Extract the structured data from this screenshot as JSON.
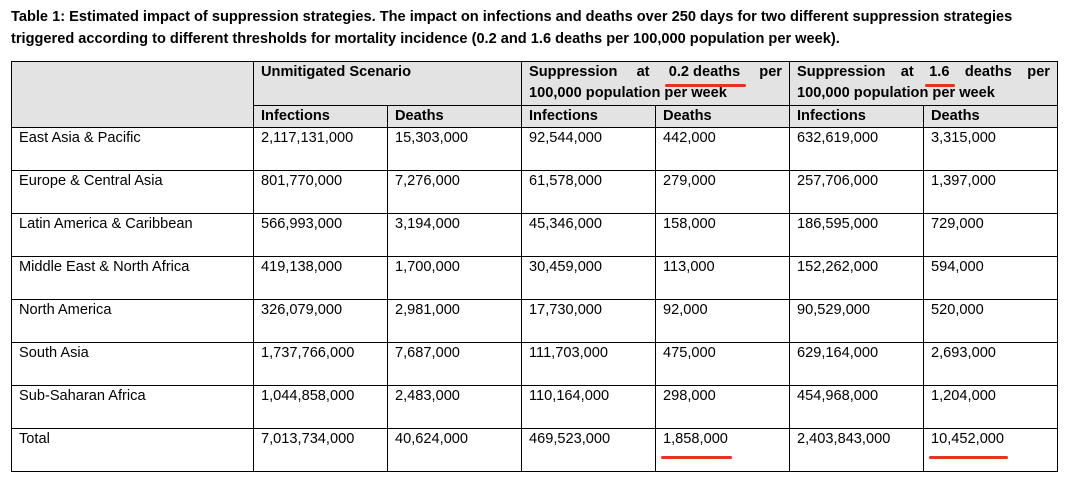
{
  "caption": "Table 1: Estimated impact of suppression strategies. The impact on infections and deaths over 250 days for two different suppression strategies triggered according to different thresholds for mortality incidence (0.2 and 1.6 deaths per 100,000 population per week).",
  "table": {
    "groups": {
      "unmitigated": "Unmitigated Scenario",
      "suppression_low": {
        "line1": [
          "Suppression",
          "at",
          "0.2 deaths",
          "per"
        ],
        "line2": "100,000 population per week"
      },
      "suppression_high": {
        "line1": [
          "Suppression",
          "at",
          "1.6",
          "deaths",
          "per"
        ],
        "line2": "100,000 population per week"
      }
    },
    "subheaders": [
      "Infections",
      "Deaths",
      "Infections",
      "Deaths",
      "Infections",
      "Deaths"
    ],
    "rows": [
      {
        "region": "East Asia & Pacific",
        "values": [
          "2,117,131,000",
          "15,303,000",
          "92,544,000",
          "442,000",
          "632,619,000",
          "3,315,000"
        ]
      },
      {
        "region": "Europe & Central Asia",
        "values": [
          "801,770,000",
          "7,276,000",
          "61,578,000",
          "279,000",
          "257,706,000",
          "1,397,000"
        ]
      },
      {
        "region": "Latin America & Caribbean",
        "values": [
          "566,993,000",
          "3,194,000",
          "45,346,000",
          "158,000",
          "186,595,000",
          "729,000"
        ]
      },
      {
        "region": "Middle East & North Africa",
        "values": [
          "419,138,000",
          "1,700,000",
          "30,459,000",
          "113,000",
          "152,262,000",
          "594,000"
        ]
      },
      {
        "region": "North America",
        "values": [
          "326,079,000",
          "2,981,000",
          "17,730,000",
          "92,000",
          "90,529,000",
          "520,000"
        ]
      },
      {
        "region": "South Asia",
        "values": [
          "1,737,766,000",
          "7,687,000",
          "111,703,000",
          "475,000",
          "629,164,000",
          "2,693,000"
        ]
      },
      {
        "region": "Sub-Saharan Africa",
        "values": [
          "1,044,858,000",
          "2,483,000",
          "110,164,000",
          "298,000",
          "454,968,000",
          "1,204,000"
        ]
      },
      {
        "region": "Total",
        "values": [
          "7,013,734,000",
          "40,624,000",
          "469,523,000",
          "1,858,000",
          "2,403,843,000",
          "10,452,000"
        ]
      }
    ]
  },
  "annotation_color": "#e8331c"
}
